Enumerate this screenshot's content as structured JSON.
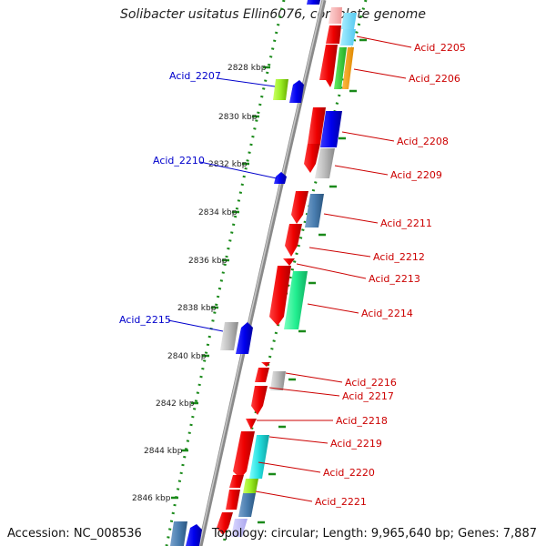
{
  "title": "Solibacter usitatus Ellin6076, complete genome",
  "accession": "Accession: NC_008536",
  "topology": "Topology: circular; Length: 9,965,640 bp; Genes: 7,887",
  "colors": {
    "backbone": "#888888",
    "dots": "#1a8a1a",
    "right_label": "#cc0000",
    "left_label": "#0000cc"
  },
  "ticks": [
    {
      "label": "2828 kbp"
    },
    {
      "label": "2830 kbp"
    },
    {
      "label": "2832 kbp"
    },
    {
      "label": "2834 kbp"
    },
    {
      "label": "2836 kbp"
    },
    {
      "label": "2838 kbp"
    },
    {
      "label": "2840 kbp"
    },
    {
      "label": "2842 kbp"
    },
    {
      "label": "2844 kbp"
    },
    {
      "label": "2846 kbp"
    }
  ],
  "gene_labels_right": [
    {
      "text": "Acid_2205"
    },
    {
      "text": "Acid_2206"
    },
    {
      "text": "Acid_2208"
    },
    {
      "text": "Acid_2209"
    },
    {
      "text": "Acid_2211"
    },
    {
      "text": "Acid_2212"
    },
    {
      "text": "Acid_2213"
    },
    {
      "text": "Acid_2214"
    },
    {
      "text": "Acid_2216"
    },
    {
      "text": "Acid_2217"
    },
    {
      "text": "Acid_2218"
    },
    {
      "text": "Acid_2219"
    },
    {
      "text": "Acid_2220"
    },
    {
      "text": "Acid_2221"
    }
  ],
  "gene_labels_left": [
    {
      "text": "Acid_2207"
    },
    {
      "text": "Acid_2210"
    },
    {
      "text": "Acid_2215"
    }
  ]
}
